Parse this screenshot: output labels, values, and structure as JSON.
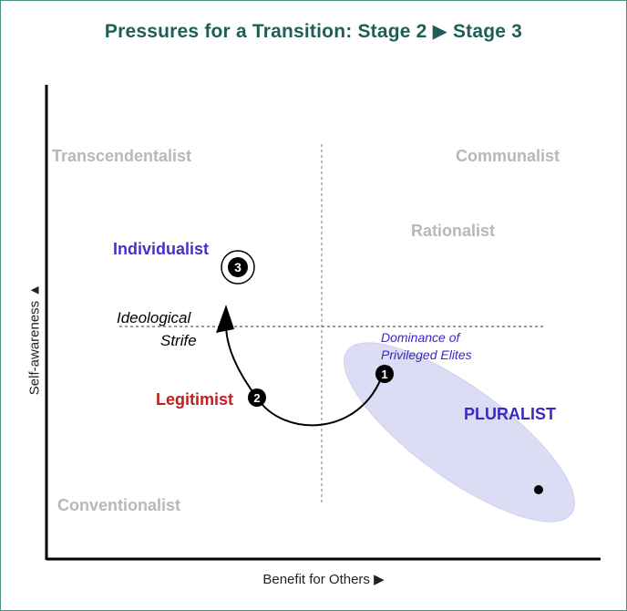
{
  "title": "Pressures for a Transition: Stage 2 ▶ Stage 3",
  "axes": {
    "y_label": "Self-awareness ▲",
    "x_label": "Benefit for Others ▶"
  },
  "quadrants": {
    "top_left": "Transcendentalist",
    "top_right": "Communalist",
    "upper_mid_right": "Rationalist",
    "bottom_left": "Conventionalist"
  },
  "labels": {
    "individualist": "Individualist",
    "legitimist": "Legitimist",
    "pluralist": "PLURALIST",
    "ideological_line1": "Ideological",
    "ideological_line2": "Strife",
    "dominance_line1": "Dominance of",
    "dominance_line2": "Privileged Elites"
  },
  "markers": {
    "one": "1",
    "two": "2",
    "three": "3"
  },
  "colors": {
    "title": "#1f5e57",
    "quadrant_text": "#b8b8b8",
    "individualist": "#4a2fc9",
    "legitimist": "#c0201f",
    "pluralist": "#3c28c4",
    "ellipse": "#dcdcf4"
  }
}
